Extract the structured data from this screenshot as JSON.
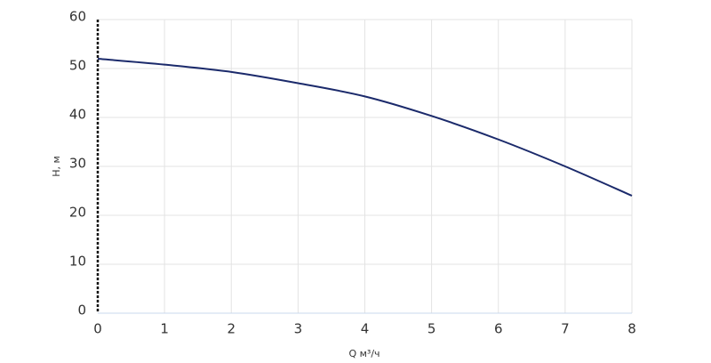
{
  "chart_data": {
    "type": "line",
    "x_label": "Q м³/ч",
    "y_label": "H, м",
    "x": [
      0,
      1,
      2,
      3,
      4,
      5,
      6,
      7,
      8
    ],
    "series": [
      {
        "name": "H",
        "color": "#1b2a6b",
        "values": [
          52,
          50.8,
          49.3,
          47,
          44.3,
          40.3,
          35.5,
          30,
          24
        ]
      }
    ],
    "xlim": [
      0,
      8
    ],
    "xticks": [
      0,
      1,
      2,
      3,
      4,
      5,
      6,
      7,
      8
    ],
    "ylim": [
      0,
      60
    ],
    "yticks": [
      0,
      10,
      20,
      30,
      40,
      50,
      60
    ],
    "grid": true
  }
}
